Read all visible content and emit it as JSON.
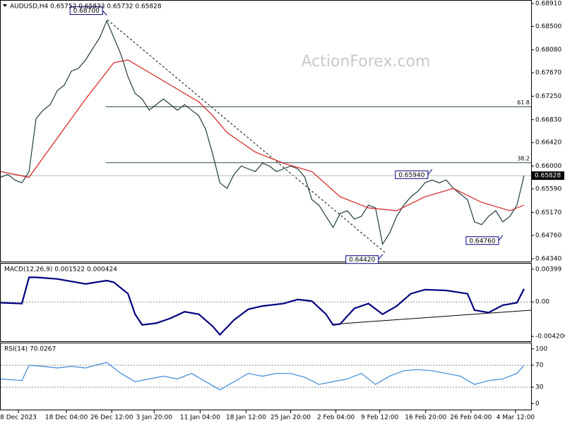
{
  "chart_data": [
    {
      "type": "line",
      "title": "AUDUSD,H4 0.65752 0.65833 0.65732 0.65828",
      "watermark": "ActionForex.com",
      "xlim": [
        0,
        75
      ],
      "ylim": [
        0.6429,
        0.6896
      ],
      "yticks": [
        {
          "value": 0.6891,
          "label": "0.68910"
        },
        {
          "value": 0.685,
          "label": "0.68500"
        },
        {
          "value": 0.6808,
          "label": "0.68080"
        },
        {
          "value": 0.6767,
          "label": "0.67670"
        },
        {
          "value": 0.6725,
          "label": "0.67250"
        },
        {
          "value": 0.6683,
          "label": "0.66830"
        },
        {
          "value": 0.6642,
          "label": "0.66420"
        },
        {
          "value": 0.66,
          "label": "0.66000"
        },
        {
          "value": 0.6559,
          "label": "0.65590"
        },
        {
          "value": 0.6517,
          "label": "0.65170"
        },
        {
          "value": 0.6476,
          "label": "0.64760"
        },
        {
          "value": 0.6434,
          "label": "0.64340"
        }
      ],
      "last_price": 0.65828,
      "levels": [
        {
          "name": "61.8",
          "value": 0.6706
        },
        {
          "name": "38.2",
          "value": 0.6606
        }
      ],
      "annotations": [
        {
          "x": 15,
          "value": 0.687,
          "label": "0.68700"
        },
        {
          "x": 61,
          "value": 0.6594,
          "label": "0.65940"
        },
        {
          "x": 54,
          "value": 0.6442,
          "label": "0.64420"
        },
        {
          "x": 71,
          "value": 0.6476,
          "label": "0.64760"
        }
      ],
      "series": [
        {
          "name": "AUDUSD",
          "color": "#1f3b3b",
          "x": [
            0,
            1,
            2,
            3,
            4,
            5,
            6,
            7,
            8,
            9,
            10,
            11,
            12,
            13,
            14,
            15,
            16,
            17,
            18,
            19,
            20,
            21,
            22,
            23,
            24,
            25,
            26,
            27,
            28,
            29,
            30,
            31,
            32,
            33,
            34,
            35,
            36,
            37,
            38,
            39,
            40,
            41,
            42,
            43,
            44,
            45,
            46,
            47,
            48,
            49,
            50,
            51,
            52,
            53,
            54,
            55,
            56,
            57,
            58,
            59,
            60,
            61,
            62,
            63,
            64,
            65,
            66,
            67,
            68,
            69,
            70,
            71,
            72,
            73,
            74
          ],
          "values": [
            0.658,
            0.6585,
            0.6575,
            0.657,
            0.659,
            0.6685,
            0.67,
            0.671,
            0.6735,
            0.6745,
            0.677,
            0.6775,
            0.679,
            0.681,
            0.683,
            0.686,
            0.683,
            0.68,
            0.676,
            0.673,
            0.672,
            0.67,
            0.671,
            0.672,
            0.671,
            0.67,
            0.671,
            0.67,
            0.669,
            0.6665,
            0.662,
            0.657,
            0.656,
            0.6585,
            0.66,
            0.6595,
            0.659,
            0.6605,
            0.66,
            0.659,
            0.6595,
            0.66,
            0.6595,
            0.658,
            0.654,
            0.653,
            0.651,
            0.649,
            0.6515,
            0.652,
            0.6505,
            0.651,
            0.653,
            0.6525,
            0.646,
            0.648,
            0.651,
            0.653,
            0.6545,
            0.6555,
            0.657,
            0.6575,
            0.657,
            0.6575,
            0.656,
            0.655,
            0.654,
            0.65,
            0.6495,
            0.651,
            0.652,
            0.65,
            0.651,
            0.653,
            0.6583
          ]
        },
        {
          "name": "MA",
          "color": "#d42020",
          "x": [
            0,
            4,
            8,
            12,
            16,
            18,
            20,
            24,
            28,
            30,
            32,
            36,
            40,
            44,
            48,
            52,
            56,
            60,
            64,
            68,
            72,
            74
          ],
          "values": [
            0.659,
            0.658,
            0.665,
            0.672,
            0.6785,
            0.679,
            0.6775,
            0.6745,
            0.6715,
            0.669,
            0.666,
            0.6625,
            0.6605,
            0.659,
            0.6545,
            0.6525,
            0.652,
            0.6545,
            0.656,
            0.6535,
            0.652,
            0.653
          ]
        }
      ]
    },
    {
      "type": "line",
      "title": "MACD(12,26,9) 0.001522 0.000424",
      "xlim": [
        0,
        75
      ],
      "ylim": [
        -0.0048,
        0.00467
      ],
      "yticks": [
        0.00399,
        {
          "value": 0,
          "label": "0.00"
        },
        -0.004206
      ],
      "levels": [
        {
          "value": 0
        }
      ],
      "series": [
        {
          "name": "MACD",
          "color": "#000080",
          "x": [
            0,
            3,
            4,
            5,
            8,
            10,
            12,
            15,
            16,
            18,
            19,
            20,
            22,
            24,
            26,
            28,
            30,
            31,
            33,
            35,
            37,
            40,
            42,
            44,
            46,
            47,
            48,
            50,
            52,
            54,
            56,
            58,
            60,
            63,
            66,
            67,
            69,
            71,
            73,
            74
          ],
          "values": [
            -0.0001,
            -0.0002,
            0.003,
            0.003,
            0.0028,
            0.0025,
            0.0022,
            0.0026,
            0.0024,
            0.001,
            -0.0015,
            -0.0028,
            -0.0026,
            -0.002,
            -0.0012,
            -0.0015,
            -0.003,
            -0.004,
            -0.0022,
            -0.0009,
            -0.0005,
            -0.0002,
            0.0003,
            0.0001,
            -0.0015,
            -0.0028,
            -0.0027,
            -0.0008,
            -0.0002,
            -0.0015,
            -0.0005,
            0.001,
            0.0015,
            0.0014,
            0.001,
            -0.001,
            -0.0013,
            -0.0004,
            -0.0001,
            0.0016
          ]
        }
      ]
    },
    {
      "type": "line",
      "title": "RSI(14) 70.0267",
      "xlim": [
        0,
        75
      ],
      "ylim": [
        -11,
        110
      ],
      "yticks": [
        100,
        70,
        30,
        0
      ],
      "levels": [
        {
          "value": 70
        },
        {
          "value": 30
        }
      ],
      "xticks": [
        {
          "value": 2.5,
          "label": "8 Dec 2023"
        },
        {
          "value": 9.3,
          "label": "18 Dec 04:00"
        },
        {
          "value": 15.7,
          "label": "26 Dec 12:00"
        },
        {
          "value": 21.7,
          "label": "3 Jan 20:00"
        },
        {
          "value": 28.2,
          "label": "11 Jan 04:00"
        },
        {
          "value": 34.7,
          "label": "18 Jan 12:00"
        },
        {
          "value": 41,
          "label": "25 Jan 20:00"
        },
        {
          "value": 47.4,
          "label": "2 Feb 04:00"
        },
        {
          "value": 53.6,
          "label": "9 Feb 12:00"
        },
        {
          "value": 60.1,
          "label": "16 Feb 20:00"
        },
        {
          "value": 66.5,
          "label": "26 Feb 04:00"
        },
        {
          "value": 72.8,
          "label": "4 Mar 12:00"
        }
      ],
      "series": [
        {
          "name": "RSI",
          "color": "#3c8ad8",
          "x": [
            0,
            3,
            4,
            6,
            8,
            10,
            12,
            14,
            15,
            17,
            19,
            21,
            23,
            25,
            27,
            29,
            31,
            33,
            35,
            37,
            39,
            41,
            43,
            45,
            47,
            49,
            51,
            53,
            55,
            57,
            59,
            61,
            63,
            65,
            67,
            69,
            71,
            73,
            74
          ],
          "values": [
            45,
            42,
            70,
            68,
            65,
            68,
            65,
            72,
            75,
            55,
            40,
            45,
            50,
            45,
            55,
            40,
            25,
            40,
            55,
            50,
            55,
            55,
            48,
            35,
            40,
            45,
            55,
            35,
            50,
            60,
            62,
            60,
            55,
            50,
            35,
            42,
            45,
            55,
            70
          ]
        }
      ]
    }
  ]
}
